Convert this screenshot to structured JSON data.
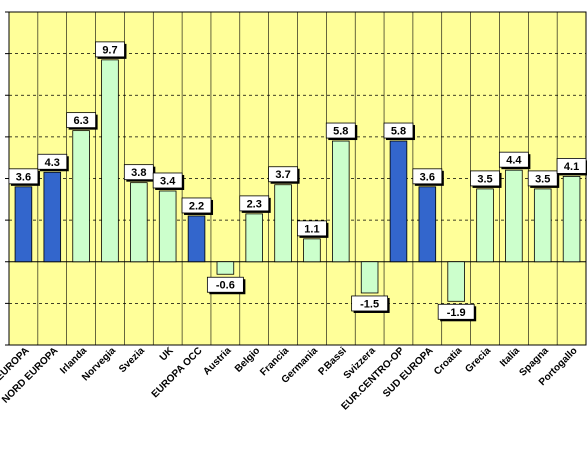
{
  "chart_data": {
    "type": "bar",
    "categories": [
      "EUROPA",
      "NORD EUROPA",
      "Irlanda",
      "Norvegia",
      "Svezia",
      "UK",
      "EUROPA OCC",
      "Austria",
      "Belgio",
      "Francia",
      "Germania",
      "P.Bassi",
      "Svizzera",
      "EUR.CENTRO-OR",
      "SUD EUROPA",
      "Croatia",
      "Grecia",
      "Italia",
      "Spagna",
      "Portogallo"
    ],
    "display_labels": [
      "EUROPA",
      "NORD EUROPA",
      "Irlanda",
      "Norvegia",
      "Svezia",
      "UK",
      "EUROPA OCC",
      "Austria",
      "Belgio",
      "Francia",
      "Germania",
      "P.Bassi",
      "Svizzera",
      "EUR.CENTRO-OP",
      "SUD EUROPA",
      "Croatia",
      "Grecia",
      "Italia",
      "Spagna",
      "Portogallo"
    ],
    "values": [
      3.6,
      4.3,
      6.3,
      9.7,
      3.8,
      3.4,
      2.2,
      -0.6,
      2.3,
      3.7,
      1.1,
      5.8,
      -1.5,
      5.8,
      3.6,
      -1.9,
      3.5,
      4.4,
      3.5,
      4.1
    ],
    "value_labels": [
      "3.6",
      "4.3",
      "6.3",
      "9.7",
      "3.8",
      "3.4",
      "2.2",
      "-0.6",
      "2.3",
      "3.7",
      "1.1",
      "5.8",
      "-1.5",
      "5.8",
      "3.6",
      "-1.9",
      "3.5",
      "4.4",
      "3.5",
      "4.1"
    ],
    "bar_kind": [
      "aggregate",
      "aggregate",
      "country",
      "country",
      "country",
      "country",
      "aggregate",
      "country",
      "country",
      "country",
      "country",
      "country",
      "country",
      "aggregate",
      "aggregate",
      "country",
      "country",
      "country",
      "country",
      "country"
    ],
    "title": "",
    "xlabel": "",
    "ylabel": "",
    "ylim": [
      -4,
      12
    ],
    "grid": true,
    "legend": "none",
    "colors": {
      "plot_background": "#ffff99",
      "aggregate_bar": "#3366cc",
      "country_bar": "#ccffcc",
      "bar_outline": "#000000",
      "gridline": "#000000",
      "label_box": "#ffffff",
      "label_shadow": "#000000"
    }
  }
}
